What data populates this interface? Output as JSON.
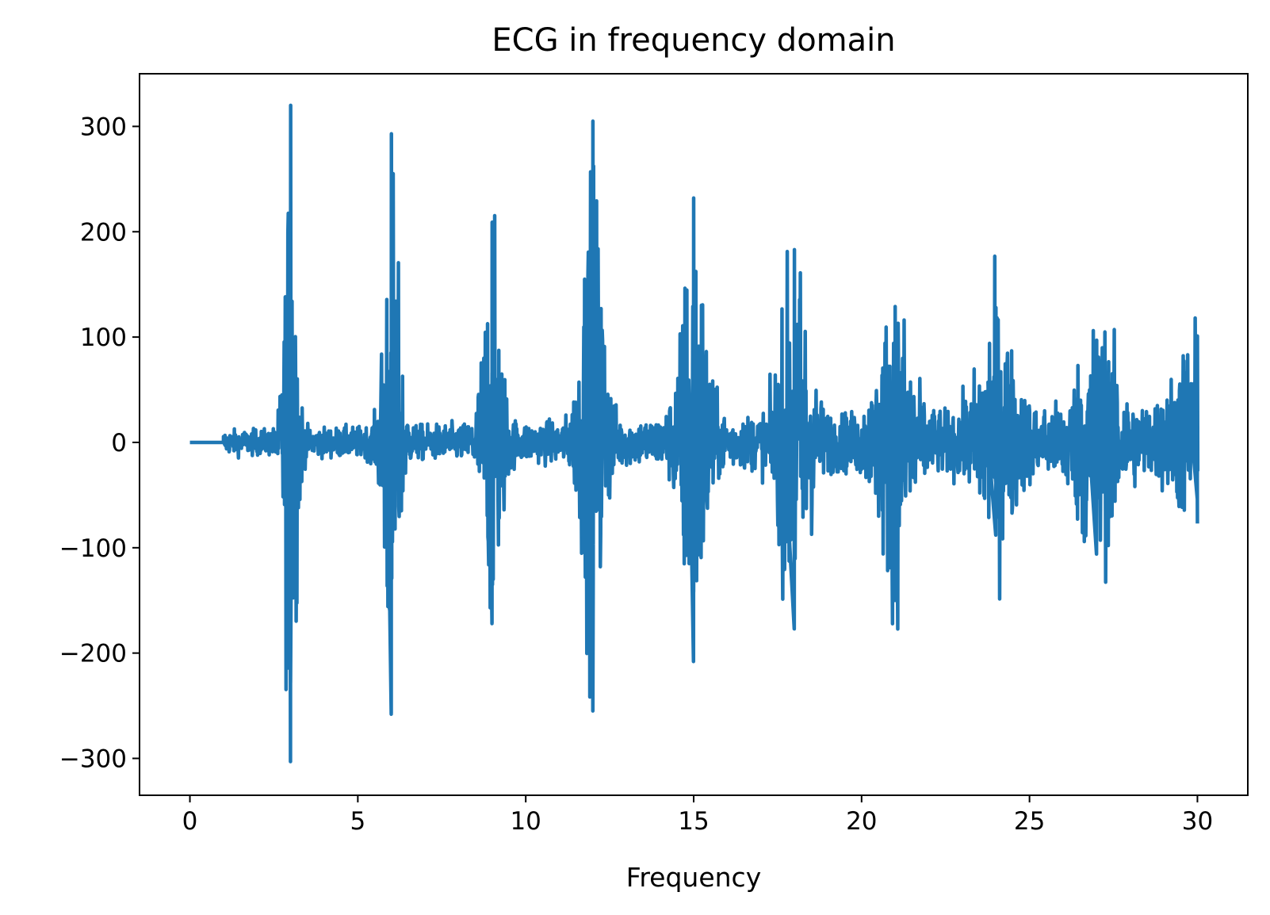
{
  "chart_data": {
    "type": "line",
    "title": "ECG in frequency domain",
    "xlabel": "Frequency",
    "ylabel": "",
    "xlim": [
      -1.5,
      31.5
    ],
    "ylim": [
      -335,
      350
    ],
    "xticks": [
      0,
      5,
      10,
      15,
      20,
      25,
      30
    ],
    "xtick_labels": [
      "0",
      "5",
      "10",
      "15",
      "20",
      "25",
      "30"
    ],
    "yticks": [
      300,
      200,
      100,
      0,
      -100,
      -200,
      -300
    ],
    "ytick_labels": [
      "300",
      "200",
      "100",
      "0",
      "−100",
      "−200",
      "−300"
    ],
    "grid": false,
    "legend": "none",
    "line_color": "#1f77b4",
    "series": [
      {
        "flat_segment": {
          "x": [
            0,
            1
          ],
          "y": 0
        },
        "noise_start_x": 1,
        "noise_end_x": 30,
        "peaks": [
          {
            "x": 3,
            "max": 320,
            "min": -303
          },
          {
            "x": 6,
            "max": 293,
            "min": -258
          },
          {
            "x": 9,
            "max": 209,
            "min": -172
          },
          {
            "x": 12,
            "max": 305,
            "min": -194
          },
          {
            "x": 15,
            "max": 232,
            "min": -208
          },
          {
            "x": 18,
            "max": 183,
            "min": -177
          },
          {
            "x": 21,
            "max": 129,
            "min": -150
          },
          {
            "x": 24,
            "max": 128,
            "min": -88
          },
          {
            "x": 27,
            "max": 97,
            "min": -106
          },
          {
            "x": 30,
            "max": 101,
            "min": -53
          }
        ]
      }
    ]
  }
}
